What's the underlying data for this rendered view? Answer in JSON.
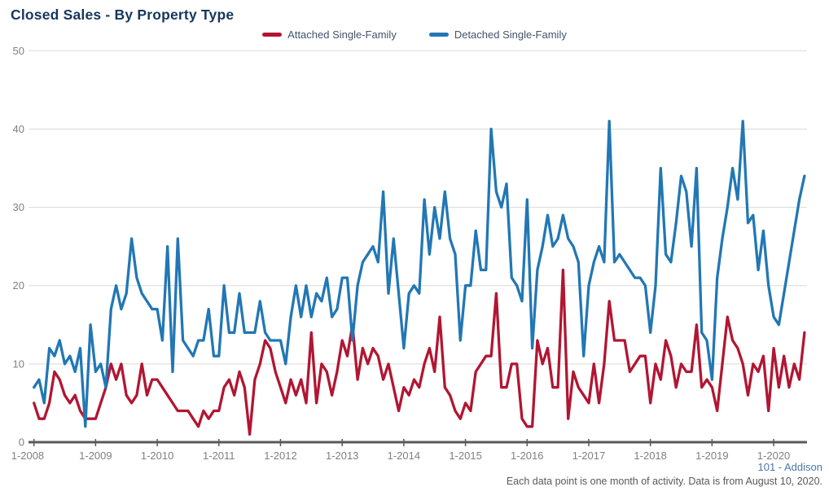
{
  "header": {
    "title": "Closed Sales - By Property Type"
  },
  "legend": {
    "items": [
      {
        "label": "Attached Single-Family",
        "color": "#b11632"
      },
      {
        "label": "Detached Single-Family",
        "color": "#2277b4"
      }
    ]
  },
  "footer": {
    "source": "101 - Addison",
    "note": "Each data point is one month of activity. Data is from August 10, 2020."
  },
  "colors": {
    "title": "#17365d",
    "axis_line": "#595959",
    "gridline": "#d9d9d9",
    "tick_label": "#808080",
    "attached_series": "#b11632",
    "detached_series": "#2277b4",
    "source_link": "#4a76a8",
    "note_text": "#595959"
  },
  "chart_data": {
    "type": "line",
    "title": "Closed Sales - By Property Type",
    "x_frequency": "monthly",
    "x_start": "1-2008",
    "x_end": "7-2020",
    "x_tick_labels": [
      "1-2008",
      "1-2009",
      "1-2010",
      "1-2011",
      "1-2012",
      "1-2013",
      "1-2014",
      "1-2015",
      "1-2016",
      "1-2017",
      "1-2018",
      "1-2019",
      "1-2020"
    ],
    "y_ticks": [
      0,
      10,
      20,
      30,
      40,
      50
    ],
    "ylim": [
      0,
      50
    ],
    "grid": true,
    "legend_position": "top",
    "series": [
      {
        "name": "Attached Single-Family",
        "color": "#b11632",
        "values": [
          5,
          3,
          3,
          5,
          9,
          8,
          6,
          5,
          6,
          4,
          3,
          3,
          3,
          5,
          7,
          10,
          8,
          10,
          6,
          5,
          6,
          10,
          6,
          8,
          8,
          7,
          6,
          5,
          4,
          4,
          4,
          3,
          2,
          4,
          3,
          4,
          4,
          7,
          8,
          6,
          9,
          7,
          1,
          8,
          10,
          13,
          12,
          9,
          7,
          5,
          8,
          6,
          8,
          5,
          14,
          5,
          10,
          9,
          6,
          9,
          13,
          11,
          15,
          8,
          12,
          10,
          12,
          11,
          8,
          10,
          7,
          4,
          7,
          6,
          8,
          7,
          10,
          12,
          9,
          16,
          7,
          6,
          4,
          3,
          5,
          4,
          9,
          10,
          11,
          11,
          19,
          7,
          7,
          10,
          10,
          3,
          2,
          2,
          13,
          10,
          12,
          7,
          7,
          22,
          3,
          9,
          7,
          6,
          5,
          10,
          5,
          10,
          18,
          13,
          13,
          13,
          9,
          10,
          11,
          11,
          5,
          10,
          8,
          13,
          11,
          7,
          10,
          9,
          9,
          15,
          7,
          8,
          7,
          4,
          10,
          16,
          13,
          12,
          10,
          6,
          10,
          9,
          11,
          4,
          12,
          7,
          11,
          7,
          10,
          8,
          14
        ]
      },
      {
        "name": "Detached Single-Family",
        "color": "#2277b4",
        "values": [
          7,
          8,
          5,
          12,
          11,
          13,
          10,
          11,
          9,
          12,
          2,
          15,
          9,
          10,
          7,
          17,
          20,
          17,
          19,
          26,
          21,
          19,
          18,
          17,
          17,
          13,
          25,
          9,
          26,
          13,
          12,
          11,
          13,
          13,
          17,
          11,
          11,
          20,
          14,
          14,
          19,
          14,
          14,
          14,
          18,
          14,
          13,
          13,
          13,
          10,
          16,
          20,
          16,
          20,
          16,
          19,
          18,
          21,
          16,
          17,
          21,
          21,
          13,
          20,
          23,
          24,
          25,
          23,
          32,
          19,
          26,
          19,
          12,
          19,
          20,
          19,
          31,
          24,
          30,
          26,
          32,
          26,
          24,
          13,
          20,
          20,
          27,
          22,
          22,
          40,
          32,
          30,
          33,
          21,
          20,
          18,
          31,
          12,
          22,
          25,
          29,
          25,
          26,
          29,
          26,
          25,
          23,
          11,
          20,
          23,
          25,
          23,
          41,
          23,
          24,
          23,
          22,
          21,
          21,
          20,
          14,
          20,
          35,
          24,
          23,
          28,
          34,
          32,
          25,
          35,
          14,
          13,
          8,
          21,
          26,
          30,
          35,
          31,
          41,
          28,
          29,
          22,
          27,
          20,
          16,
          15,
          19,
          23,
          27,
          31,
          34
        ]
      }
    ]
  }
}
